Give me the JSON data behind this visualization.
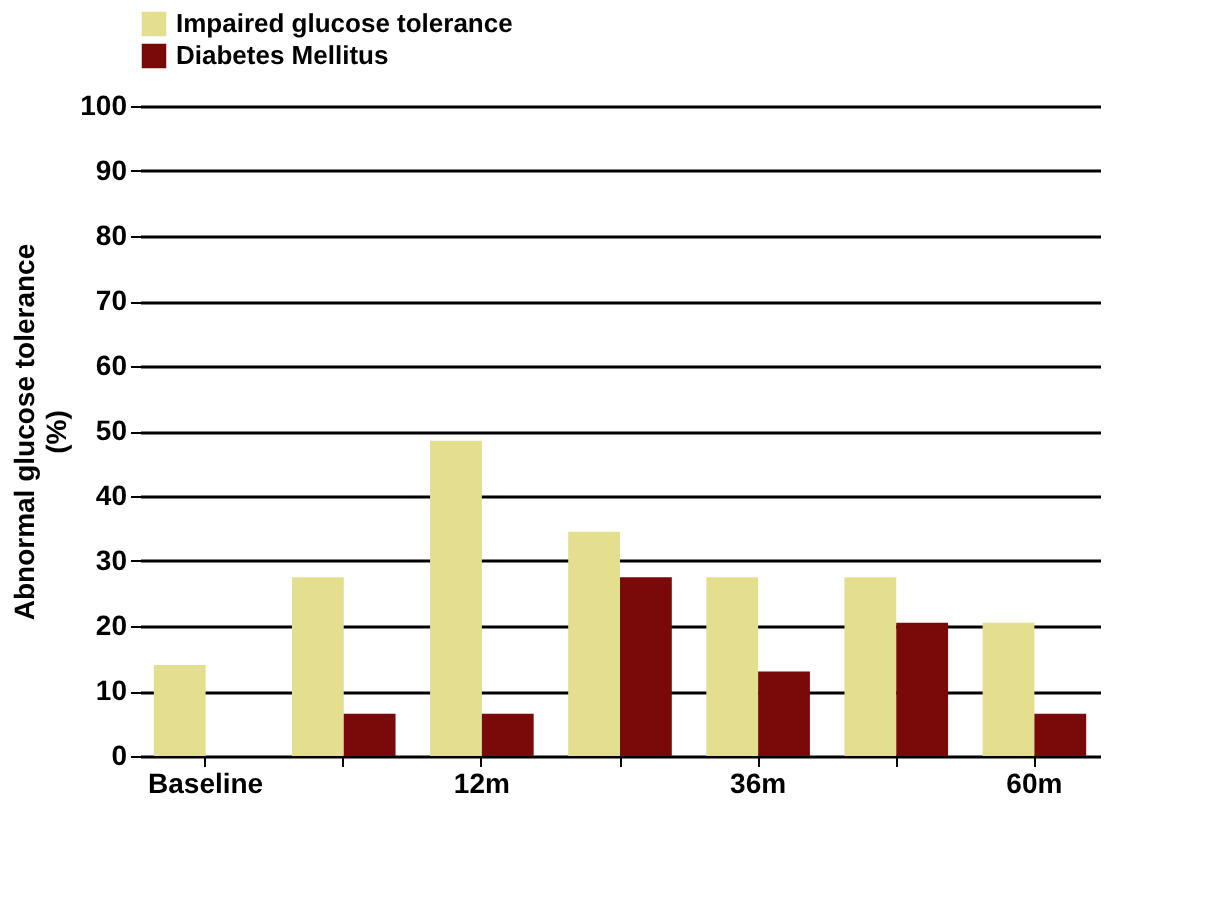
{
  "chart_data": {
    "type": "bar",
    "ylabel": "Abnormal glucose tolerance\n(%)",
    "categories": [
      "Baseline",
      null,
      "12m",
      null,
      "36m",
      null,
      "60m"
    ],
    "series": [
      {
        "name": "Impaired glucose tolerance",
        "color": "#e3df8f",
        "values": [
          14,
          27.5,
          48.5,
          34.5,
          27.5,
          27.5,
          20.5
        ]
      },
      {
        "name": "Diabetes Mellitus",
        "color": "#7a0a0a",
        "values": [
          0,
          6.5,
          6.5,
          27.5,
          13,
          20.5,
          6.5
        ]
      }
    ],
    "ylim": [
      0,
      100
    ],
    "yticks": [
      0,
      10,
      20,
      30,
      40,
      50,
      60,
      70,
      80,
      90,
      100
    ],
    "grid": "y",
    "legend": "top"
  }
}
